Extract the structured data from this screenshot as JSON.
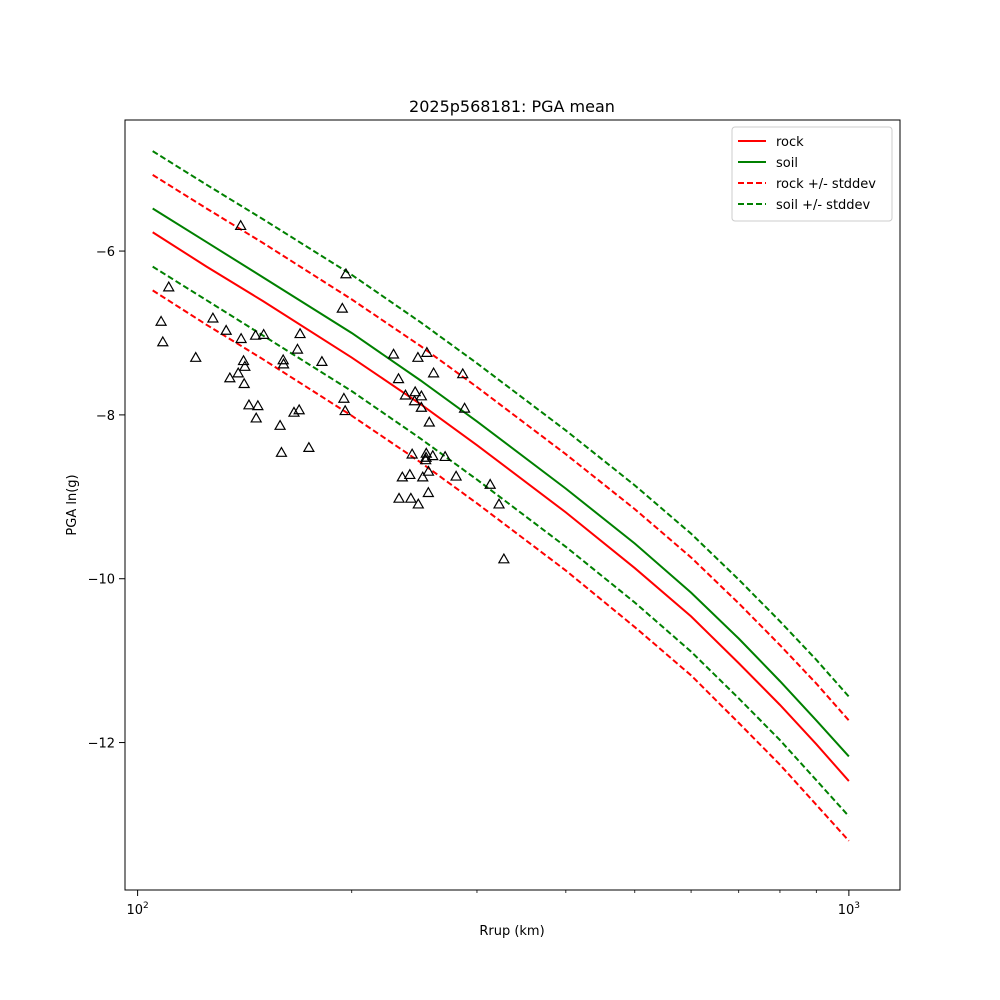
{
  "chart_data": {
    "type": "line",
    "title": "2025p568181: PGA mean",
    "xlabel": "Rrup (km)",
    "ylabel": "PGA ln(g)",
    "xscale": "log",
    "xlim": [
      96,
      1180
    ],
    "ylim": [
      -13.8,
      -4.4
    ],
    "xticks": [
      {
        "value": 100,
        "base": "10",
        "exp": "2"
      },
      {
        "value": 1000,
        "base": "10",
        "exp": "3"
      }
    ],
    "yticks": [
      {
        "value": -6,
        "label": "−6"
      },
      {
        "value": -8,
        "label": "−8"
      },
      {
        "value": -10,
        "label": "−10"
      },
      {
        "value": -12,
        "label": "−12"
      }
    ],
    "grid": false,
    "legend_position": "top-right",
    "x": [
      105,
      125,
      150,
      200,
      250,
      300,
      400,
      500,
      600,
      700,
      800,
      900,
      1000
    ],
    "series": [
      {
        "name": "rock",
        "color": "#ff0000",
        "style": "solid",
        "values": [
          -5.77,
          -6.19,
          -6.61,
          -7.3,
          -7.87,
          -8.37,
          -9.19,
          -9.87,
          -10.46,
          -11.03,
          -11.54,
          -12.02,
          -12.47
        ]
      },
      {
        "name": "soil",
        "color": "#008000",
        "style": "solid",
        "values": [
          -5.48,
          -5.89,
          -6.32,
          -7.0,
          -7.58,
          -8.08,
          -8.9,
          -9.57,
          -10.17,
          -10.73,
          -11.25,
          -11.73,
          -12.17
        ]
      },
      {
        "name": "rock +/- stddev",
        "color": "#ff0000",
        "style": "dashed",
        "values": [
          -5.07,
          -5.48,
          -5.9,
          -6.59,
          -7.16,
          -7.66,
          -8.48,
          -9.15,
          -9.74,
          -10.3,
          -10.81,
          -11.28,
          -11.73
        ]
      },
      {
        "name": "",
        "color": "#ff0000",
        "style": "dashed",
        "values": [
          -6.48,
          -6.9,
          -7.32,
          -8.01,
          -8.58,
          -9.08,
          -9.9,
          -10.59,
          -11.18,
          -11.76,
          -12.27,
          -12.76,
          -13.2
        ]
      },
      {
        "name": "soil +/- stddev",
        "color": "#008000",
        "style": "dashed",
        "values": [
          -4.78,
          -5.19,
          -5.61,
          -6.29,
          -6.87,
          -7.37,
          -8.19,
          -8.86,
          -9.45,
          -10.01,
          -10.52,
          -10.99,
          -11.44
        ]
      },
      {
        "name": "",
        "color": "#008000",
        "style": "dashed",
        "values": [
          -6.19,
          -6.6,
          -7.03,
          -7.71,
          -8.29,
          -8.79,
          -9.61,
          -10.29,
          -10.89,
          -11.46,
          -11.97,
          -12.46,
          -12.9
        ]
      }
    ],
    "observations": {
      "marker": "triangle",
      "color": "#000000",
      "points": [
        [
          110.6,
          -6.44
        ],
        [
          107.9,
          -6.86
        ],
        [
          108.5,
          -7.11
        ],
        [
          120.7,
          -7.3
        ],
        [
          127.6,
          -6.82
        ],
        [
          134.8,
          -7.55
        ],
        [
          133.2,
          -6.97
        ],
        [
          138.5,
          -7.49
        ],
        [
          139.8,
          -7.07
        ],
        [
          139.6,
          -5.69
        ],
        [
          140.9,
          -7.34
        ],
        [
          141.5,
          -7.41
        ],
        [
          141.2,
          -7.62
        ],
        [
          143.4,
          -7.88
        ],
        [
          146.5,
          -7.03
        ],
        [
          147.6,
          -7.89
        ],
        [
          146.8,
          -8.04
        ],
        [
          150.4,
          -7.02
        ],
        [
          158.6,
          -8.13
        ],
        [
          159.3,
          -8.46
        ],
        [
          160.2,
          -7.33
        ],
        [
          160.4,
          -7.38
        ],
        [
          165.9,
          -7.97
        ],
        [
          167.8,
          -7.2
        ],
        [
          168.7,
          -7.94
        ],
        [
          169.2,
          -7.01
        ],
        [
          174.1,
          -8.4
        ],
        [
          181.6,
          -7.35
        ],
        [
          194.0,
          -6.7
        ],
        [
          195.0,
          -7.8
        ],
        [
          195.8,
          -7.95
        ],
        [
          196.3,
          -6.28
        ],
        [
          229.0,
          -7.26
        ],
        [
          232.7,
          -7.56
        ],
        [
          233.1,
          -9.02
        ],
        [
          235.6,
          -8.76
        ],
        [
          238.0,
          -7.76
        ],
        [
          241.4,
          -8.73
        ],
        [
          242.2,
          -9.02
        ],
        [
          243.2,
          -8.48
        ],
        [
          245.1,
          -7.83
        ],
        [
          245.6,
          -7.72
        ],
        [
          247.8,
          -7.3
        ],
        [
          248.1,
          -9.09
        ],
        [
          250.6,
          -7.77
        ],
        [
          250.6,
          -7.91
        ],
        [
          251.7,
          -8.76
        ],
        [
          254.1,
          -8.55
        ],
        [
          254.6,
          -8.47
        ],
        [
          254.4,
          -8.52
        ],
        [
          255.1,
          -7.24
        ],
        [
          256.4,
          -8.69
        ],
        [
          256.3,
          -8.95
        ],
        [
          257.1,
          -8.09
        ],
        [
          260.0,
          -8.5
        ],
        [
          260.7,
          -7.49
        ],
        [
          270.6,
          -8.51
        ],
        [
          280.4,
          -8.75
        ],
        [
          286.5,
          -7.5
        ],
        [
          288.2,
          -7.92
        ],
        [
          313.1,
          -8.85
        ],
        [
          322.2,
          -9.09
        ],
        [
          327.3,
          -9.76
        ]
      ]
    }
  }
}
